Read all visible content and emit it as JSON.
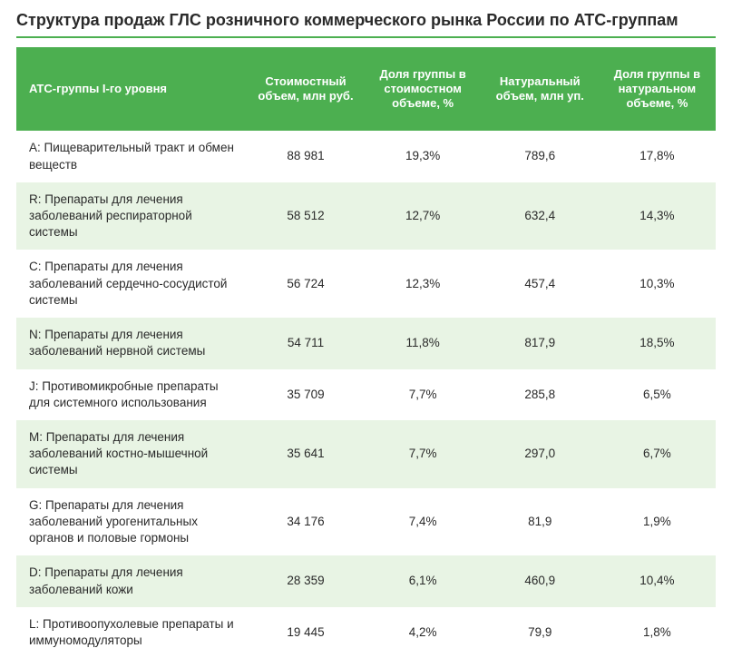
{
  "title": "Структура продаж ГЛС розничного коммерческого рынка России по ATC-группам",
  "table": {
    "type": "table",
    "header_bg": "#4caf50",
    "header_fg": "#ffffff",
    "row_odd_bg": "#ffffff",
    "row_even_bg": "#e8f4e4",
    "text_color": "#2a2a2a",
    "title_underline_color": "#4caf50",
    "font_family": "Arial",
    "header_fontsize_pt": 10,
    "body_fontsize_pt": 10,
    "columns": [
      {
        "label": "ATC-группы I-го уровня",
        "align": "left",
        "width_pct": 33.0
      },
      {
        "label": "Стоимостный объем, млн руб.",
        "align": "center",
        "width_pct": 16.75
      },
      {
        "label": "Доля группы в стоимостном объеме, %",
        "align": "center",
        "width_pct": 16.75
      },
      {
        "label": "Натуральный объем, млн уп.",
        "align": "center",
        "width_pct": 16.75
      },
      {
        "label": "Доля группы в натуральном объеме, %",
        "align": "center",
        "width_pct": 16.75
      }
    ],
    "rows": [
      {
        "label": "A: Пищеварительный тракт и обмен веществ",
        "cost_volume": "88 981",
        "cost_share": "19,3%",
        "nat_volume": "789,6",
        "nat_share": "17,8%"
      },
      {
        "label": "R: Препараты для лечения заболеваний респираторной системы",
        "cost_volume": "58 512",
        "cost_share": "12,7%",
        "nat_volume": "632,4",
        "nat_share": "14,3%"
      },
      {
        "label": "C: Препараты для лечения заболеваний сердечно-сосудистой системы",
        "cost_volume": "56 724",
        "cost_share": "12,3%",
        "nat_volume": "457,4",
        "nat_share": "10,3%"
      },
      {
        "label": "N: Препараты для лечения заболеваний нервной системы",
        "cost_volume": "54 711",
        "cost_share": "11,8%",
        "nat_volume": "817,9",
        "nat_share": "18,5%"
      },
      {
        "label": "J: Противомикробные препараты для системного использования",
        "cost_volume": "35 709",
        "cost_share": "7,7%",
        "nat_volume": "285,8",
        "nat_share": "6,5%"
      },
      {
        "label": "M: Препараты для лечения заболеваний костно-мышечной системы",
        "cost_volume": "35 641",
        "cost_share": "7,7%",
        "nat_volume": "297,0",
        "nat_share": "6,7%"
      },
      {
        "label": "G: Препараты для лечения заболеваний урогенитальных органов и половые гормоны",
        "cost_volume": "34 176",
        "cost_share": "7,4%",
        "nat_volume": "81,9",
        "nat_share": "1,9%"
      },
      {
        "label": "D: Препараты для лечения заболеваний кожи",
        "cost_volume": "28 359",
        "cost_share": "6,1%",
        "nat_volume": "460,9",
        "nat_share": "10,4%"
      },
      {
        "label": "L: Противоопухолевые препараты и иммуномодуляторы",
        "cost_volume": "19 445",
        "cost_share": "4,2%",
        "nat_volume": "79,9",
        "nat_share": "1,8%"
      }
    ]
  }
}
